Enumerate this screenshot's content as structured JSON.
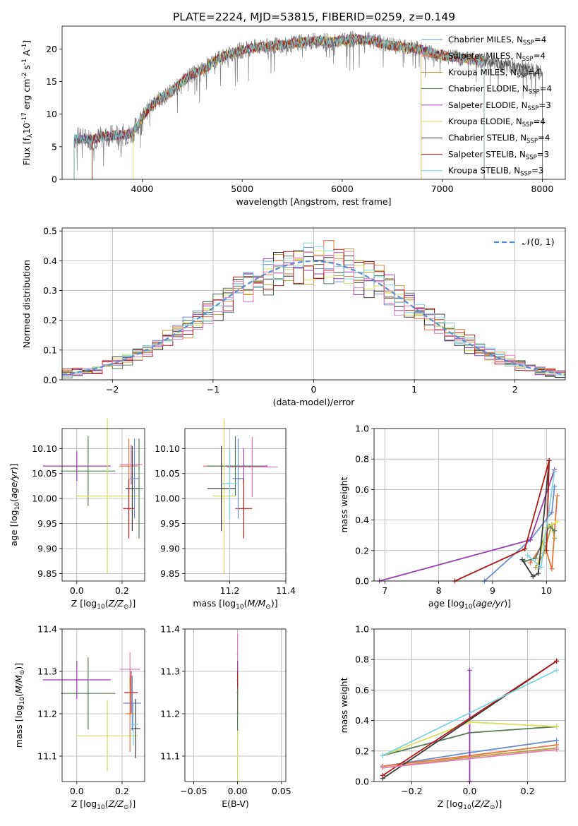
{
  "figure_title": "PLATE=2224, MJD=53815, FIBERID=0259, z=0.149",
  "colors": {
    "chabrier_miles": "#6a8ccf",
    "salpeter_miles": "#e8743b",
    "kroupa_miles": "#b9a03a",
    "chabrier_elodie": "#567a56",
    "salpeter_elodie": "#9a3db0",
    "kroupa_elodie": "#d6e05a",
    "chabrier_stelib": "#3a3a3a",
    "salpeter_stelib": "#b01a1a",
    "kroupa_stelib": "#7fd3dc",
    "pink": "#e37cb8",
    "gray_spectrum": "#808080",
    "gauss": "#5b8fd0"
  },
  "chart_data": [
    {
      "id": "spectrum",
      "type": "line",
      "title": "PLATE=2224, MJD=53815, FIBERID=0259, z=0.149",
      "xlabel": "wavelength [Angstrom, rest frame]",
      "ylabel": "Flux [f$_\\lambda$10$^{-17}$ erg cm$^{-2}$ s$^{-1}$ A$^{-1}$]",
      "xlim": [
        3200,
        8230
      ],
      "ylim": [
        0,
        23.5
      ],
      "xticks": [
        4000,
        5000,
        6000,
        7000,
        8000
      ],
      "yticks": [
        0,
        5,
        10,
        15,
        20
      ],
      "grid": false,
      "legend": "upper right",
      "legend_entries": [
        {
          "label": "Chabrier MILES, N",
          "sub": "SSP",
          "suffix": "=4",
          "color_key": "chabrier_miles"
        },
        {
          "label": "Salpeter MILES, N",
          "sub": "SSP",
          "suffix": "=4",
          "color_key": "salpeter_miles"
        },
        {
          "label": "Kroupa MILES, N",
          "sub": "SSP",
          "suffix": "=4",
          "color_key": "kroupa_miles"
        },
        {
          "label": "Chabrier ELODIE, N",
          "sub": "SSP",
          "suffix": "=4",
          "color_key": "chabrier_elodie"
        },
        {
          "label": "Salpeter ELODIE, N",
          "sub": "SSP",
          "suffix": "=3",
          "color_key": "salpeter_elodie"
        },
        {
          "label": "Kroupa ELODIE, N",
          "sub": "SSP",
          "suffix": "=4",
          "color_key": "kroupa_elodie"
        },
        {
          "label": "Chabrier STELIB, N",
          "sub": "SSP",
          "suffix": "=4",
          "color_key": "chabrier_stelib"
        },
        {
          "label": "Salpeter STELIB, N",
          "sub": "SSP",
          "suffix": "=3",
          "color_key": "salpeter_stelib"
        },
        {
          "label": "Kroupa STELIB, N",
          "sub": "SSP",
          "suffix": "=3",
          "color_key": "kroupa_stelib"
        }
      ],
      "continuum": {
        "x": [
          3320,
          3400,
          3500,
          3600,
          3700,
          3800,
          3900,
          4000,
          4100,
          4200,
          4300,
          4400,
          4500,
          4600,
          4700,
          4800,
          4900,
          5000,
          5100,
          5200,
          5300,
          5400,
          5500,
          5600,
          5700,
          5800,
          5900,
          6000,
          6100,
          6200,
          6300,
          6400,
          6500,
          6600,
          6700,
          6800,
          6900,
          7000,
          7100,
          7200,
          7300,
          7400,
          7500,
          7600,
          7700,
          7800,
          7900,
          8000
        ],
        "y": [
          6.2,
          6.3,
          6.1,
          6.5,
          6.7,
          6.8,
          7.0,
          9.5,
          11.5,
          12.5,
          13.5,
          15.0,
          16.2,
          16.8,
          17.8,
          18.8,
          19.3,
          19.8,
          20.2,
          20.3,
          20.5,
          20.6,
          20.8,
          21.0,
          21.2,
          21.3,
          21.0,
          21.3,
          21.5,
          21.4,
          21.3,
          20.8,
          20.5,
          20.4,
          20.2,
          19.8,
          19.4,
          19.0,
          18.8,
          18.6,
          18.4,
          18.2,
          18.0,
          17.6,
          17.3,
          17.0,
          16.5,
          16.2
        ]
      },
      "model_ranges": [
        [
          3500,
          7420
        ],
        [
          3320,
          7420
        ],
        [
          3500,
          6790
        ],
        [
          3320,
          7420
        ],
        [
          3320,
          7420
        ],
        [
          3910,
          7420
        ],
        [
          3320,
          8000
        ],
        [
          3500,
          7420
        ],
        [
          3320,
          7420
        ]
      ]
    },
    {
      "id": "residual_hist",
      "type": "line",
      "xlabel": "(data-model)/error",
      "ylabel": "Normed distribution",
      "xlim": [
        -2.5,
        2.5
      ],
      "ylim": [
        0,
        0.51
      ],
      "xticks": [
        -2,
        -1,
        0,
        1,
        2
      ],
      "yticks": [
        0.0,
        0.1,
        0.2,
        0.3,
        0.4,
        0.5
      ],
      "grid": true,
      "legend": "upper right",
      "legend_entries": [
        {
          "label": "𝒩(0, 1)",
          "color_key": "gauss",
          "dashed": true
        }
      ],
      "bin_edges_range": [
        -2.5,
        2.5
      ],
      "bin_count": 50,
      "gauss": {
        "mu": 0,
        "sigma": 1
      }
    },
    {
      "id": "age_vs_Z",
      "type": "scatter",
      "xlabel": "Z [log$_{10}$($Z/Z_\\odot$)]",
      "ylabel": "age  [log$_{10}$($age/yr$)]",
      "xlim": [
        -0.065,
        0.3
      ],
      "ylim": [
        9.835,
        10.14
      ],
      "xticks": [
        0.0,
        0.2
      ],
      "yticks": [
        9.85,
        9.9,
        9.95,
        10.0,
        10.05,
        10.1
      ],
      "grid": true,
      "points": [
        {
          "x": 0.0,
          "y": 10.065,
          "xerr": 0.15,
          "yerr": 0.03,
          "color_key": "salpeter_elodie"
        },
        {
          "x": 0.05,
          "y": 10.055,
          "xerr": 0.12,
          "yerr": 0.07,
          "color_key": "chabrier_elodie"
        },
        {
          "x": 0.135,
          "y": 10.005,
          "xerr": 0.135,
          "yerr": 0.155,
          "color_key": "kroupa_elodie"
        },
        {
          "x": 0.23,
          "y": 10.065,
          "xerr": 0.04,
          "yerr": 0.055,
          "color_key": "salpeter_miles"
        },
        {
          "x": 0.24,
          "y": 10.068,
          "xerr": 0.05,
          "yerr": 0.04,
          "color_key": "pink"
        },
        {
          "x": 0.245,
          "y": 10.02,
          "xerr": 0.03,
          "yerr": 0.085,
          "color_key": "chabrier_stelib"
        },
        {
          "x": 0.23,
          "y": 9.98,
          "xerr": 0.025,
          "yerr": 0.06,
          "color_key": "salpeter_stelib"
        },
        {
          "x": 0.255,
          "y": 10.04,
          "xerr": 0.02,
          "yerr": 0.08,
          "color_key": "chabrier_miles"
        },
        {
          "x": 0.275,
          "y": 10.02,
          "xerr": 0.02,
          "yerr": 0.1,
          "color_key": "chabrier_elodie"
        }
      ]
    },
    {
      "id": "age_vs_mass",
      "type": "scatter",
      "xlabel": "mass [log$_{10}$($M/M_\\odot$)]",
      "xlim": [
        11.04,
        11.4
      ],
      "ylim": [
        9.835,
        10.14
      ],
      "xticks": [
        11.2,
        11.4
      ],
      "yticks": [
        9.85,
        9.9,
        9.95,
        10.0,
        10.05,
        10.1
      ],
      "grid": true,
      "points": [
        {
          "x": 11.2,
          "y": 10.065,
          "xerr": 0.095,
          "yerr": 0.035,
          "color_key": "salpeter_miles"
        },
        {
          "x": 11.25,
          "y": 10.065,
          "xerr": 0.085,
          "yerr": 0.035,
          "color_key": "salpeter_elodie"
        },
        {
          "x": 11.28,
          "y": 10.063,
          "xerr": 0.09,
          "yerr": 0.06,
          "color_key": "pink"
        },
        {
          "x": 11.22,
          "y": 10.065,
          "xerr": 0.1,
          "yerr": 0.06,
          "color_key": "chabrier_elodie"
        },
        {
          "x": 11.18,
          "y": 10.005,
          "xerr": 0.04,
          "yerr": 0.155,
          "color_key": "kroupa_elodie"
        },
        {
          "x": 11.17,
          "y": 10.02,
          "xerr": 0.05,
          "yerr": 0.085,
          "color_key": "chabrier_stelib"
        },
        {
          "x": 11.25,
          "y": 9.98,
          "xerr": 0.03,
          "yerr": 0.06,
          "color_key": "salpeter_stelib"
        },
        {
          "x": 11.23,
          "y": 10.04,
          "xerr": 0.02,
          "yerr": 0.08,
          "color_key": "chabrier_miles"
        },
        {
          "x": 11.2,
          "y": 10.03,
          "xerr": 0.03,
          "yerr": 0.07,
          "color_key": "kroupa_stelib"
        }
      ]
    },
    {
      "id": "massweight_vs_age",
      "type": "line",
      "xlabel": "age  [log$_{10}$($age/yr$)]",
      "ylabel": "mass weight",
      "xlim": [
        6.8,
        10.35
      ],
      "ylim": [
        0,
        1.0
      ],
      "xticks": [
        7,
        8,
        9,
        10
      ],
      "yticks": [
        0.0,
        0.2,
        0.4,
        0.6,
        0.8,
        1.0
      ],
      "grid": true,
      "series": [
        {
          "color_key": "chabrier_miles",
          "x": [
            8.85,
            9.7,
            10.1,
            10.15
          ],
          "y": [
            0.0,
            0.27,
            0.45,
            0.62
          ]
        },
        {
          "color_key": "salpeter_miles",
          "x": [
            9.7,
            9.95,
            10.1,
            10.2
          ],
          "y": [
            0.12,
            0.25,
            0.08,
            0.56
          ]
        },
        {
          "color_key": "kroupa_miles",
          "x": [
            9.8,
            9.95,
            10.1,
            10.15
          ],
          "y": [
            0.09,
            0.18,
            0.37,
            0.28
          ]
        },
        {
          "color_key": "chabrier_elodie",
          "x": [
            9.6,
            9.8,
            10.05,
            10.15
          ],
          "y": [
            0.13,
            0.15,
            0.36,
            0.33
          ]
        },
        {
          "color_key": "salpeter_elodie",
          "x": [
            6.9,
            9.7,
            10.15
          ],
          "y": [
            0.0,
            0.27,
            0.73
          ]
        },
        {
          "color_key": "kroupa_elodie",
          "x": [
            9.85,
            10.0,
            10.2
          ],
          "y": [
            0.12,
            0.35,
            0.39
          ]
        },
        {
          "color_key": "chabrier_stelib",
          "x": [
            9.55,
            9.75,
            9.85,
            10.05
          ],
          "y": [
            0.14,
            0.03,
            0.05,
            0.79
          ]
        },
        {
          "color_key": "salpeter_stelib",
          "x": [
            8.3,
            9.6,
            10.05,
            10.0
          ],
          "y": [
            0.0,
            0.21,
            0.79,
            0.2
          ]
        },
        {
          "color_key": "kroupa_stelib",
          "x": [
            9.65,
            9.9,
            10.15
          ],
          "y": [
            0.17,
            0.09,
            0.72
          ]
        }
      ]
    },
    {
      "id": "mass_vs_Z",
      "type": "scatter",
      "xlabel": "Z [log$_{10}$($Z/Z_\\odot$)]",
      "ylabel": "mass [log$_{10}$($M/M_\\odot$)]",
      "xlim": [
        -0.065,
        0.3
      ],
      "ylim": [
        11.04,
        11.4
      ],
      "xticks": [
        0.0,
        0.2
      ],
      "yticks": [
        11.1,
        11.2,
        11.3,
        11.4
      ],
      "grid": true,
      "points": [
        {
          "x": 0.0,
          "y": 11.28,
          "xerr": 0.15,
          "yerr": 0.045,
          "color_key": "salpeter_elodie"
        },
        {
          "x": 0.05,
          "y": 11.248,
          "xerr": 0.12,
          "yerr": 0.085,
          "color_key": "chabrier_elodie"
        },
        {
          "x": 0.135,
          "y": 11.148,
          "xerr": 0.135,
          "yerr": 0.085,
          "color_key": "kroupa_elodie"
        },
        {
          "x": 0.235,
          "y": 11.305,
          "xerr": 0.045,
          "yerr": 0.04,
          "color_key": "pink"
        },
        {
          "x": 0.24,
          "y": 11.25,
          "xerr": 0.03,
          "yerr": 0.05,
          "color_key": "salpeter_stelib"
        },
        {
          "x": 0.245,
          "y": 11.225,
          "xerr": 0.04,
          "yerr": 0.065,
          "color_key": "chabrier_miles"
        },
        {
          "x": 0.235,
          "y": 11.2,
          "xerr": 0.02,
          "yerr": 0.09,
          "color_key": "salpeter_miles"
        },
        {
          "x": 0.26,
          "y": 11.165,
          "xerr": 0.02,
          "yerr": 0.07,
          "color_key": "chabrier_stelib"
        },
        {
          "x": 0.25,
          "y": 11.175,
          "xerr": 0.02,
          "yerr": 0.05,
          "color_key": "kroupa_stelib"
        }
      ]
    },
    {
      "id": "mass_vs_EBV",
      "type": "scatter",
      "xlabel": "E(B-V)",
      "xlim": [
        -0.06,
        0.055
      ],
      "ylim": [
        11.04,
        11.4
      ],
      "xticks": [
        -0.05,
        0.0,
        0.05
      ],
      "yticks": [
        11.1,
        11.2,
        11.3,
        11.4
      ],
      "grid": true,
      "points": [
        {
          "x": 0.0,
          "y": 11.34,
          "xerr": 0,
          "yerr": 0.05,
          "color_key": "pink"
        },
        {
          "x": 0.0,
          "y": 11.28,
          "xerr": 0,
          "yerr": 0.045,
          "color_key": "salpeter_elodie"
        },
        {
          "x": 0.0,
          "y": 11.25,
          "xerr": 0,
          "yerr": 0.05,
          "color_key": "salpeter_stelib"
        },
        {
          "x": 0.0,
          "y": 11.2,
          "xerr": 0,
          "yerr": 0.06,
          "color_key": "chabrier_elodie"
        },
        {
          "x": 0.0,
          "y": 11.1,
          "xerr": 0,
          "yerr": 0.06,
          "color_key": "kroupa_elodie"
        }
      ]
    },
    {
      "id": "massweight_vs_Z",
      "type": "line",
      "xlabel": "Z [log$_{10}$($Z/Z_\\odot$)]",
      "ylabel": "mass weight",
      "xlim": [
        -0.33,
        0.33
      ],
      "ylim": [
        0,
        1.0
      ],
      "xticks": [
        -0.2,
        0.0,
        0.2
      ],
      "yticks": [
        0.0,
        0.2,
        0.4,
        0.6,
        0.8,
        1.0
      ],
      "grid": true,
      "series": [
        {
          "color_key": "chabrier_miles",
          "x": [
            -0.3,
            0.0,
            0.3
          ],
          "y": [
            0.1,
            0.19,
            0.27
          ]
        },
        {
          "color_key": "salpeter_miles",
          "x": [
            -0.3,
            0.0,
            0.3
          ],
          "y": [
            0.1,
            0.17,
            0.24
          ]
        },
        {
          "color_key": "kroupa_miles",
          "x": [
            -0.3,
            0.0,
            0.3
          ],
          "y": [
            0.09,
            0.16,
            0.22
          ]
        },
        {
          "color_key": "chabrier_elodie",
          "x": [
            -0.3,
            0.0,
            0.3
          ],
          "y": [
            0.17,
            0.32,
            0.36
          ]
        },
        {
          "color_key": "salpeter_elodie",
          "x": [
            0.0,
            0.0
          ],
          "y": [
            0.0,
            0.73
          ]
        },
        {
          "color_key": "kroupa_elodie",
          "x": [
            -0.3,
            0.0,
            0.3
          ],
          "y": [
            0.17,
            0.39,
            0.36
          ]
        },
        {
          "color_key": "chabrier_stelib",
          "x": [
            -0.3,
            0.3
          ],
          "y": [
            0.02,
            0.79
          ]
        },
        {
          "color_key": "salpeter_stelib",
          "x": [
            -0.3,
            0.3
          ],
          "y": [
            0.04,
            0.79
          ]
        },
        {
          "color_key": "kroupa_stelib",
          "x": [
            -0.3,
            0.3
          ],
          "y": [
            0.17,
            0.73
          ]
        },
        {
          "color_key": "pink",
          "x": [
            -0.3,
            0.0,
            0.3
          ],
          "y": [
            0.09,
            0.15,
            0.21
          ]
        }
      ]
    }
  ]
}
